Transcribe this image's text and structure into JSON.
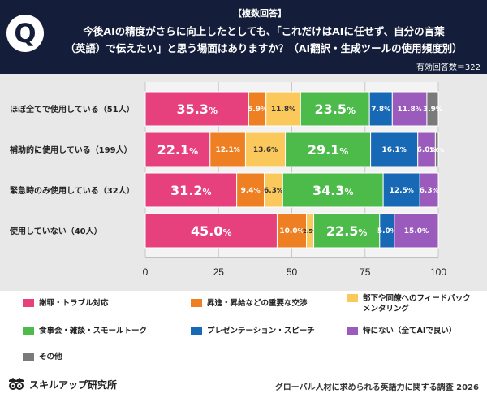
{
  "header": {
    "tag": "【複数回答】",
    "q_mark": "Q",
    "question_line1": "今後AIの精度がさらに向上したとしても、「これだけはAIに任せず、自分の言葉",
    "question_line2": "（英語）で伝えたい」と思う場面はありますか？（AI翻訳・生成ツールの使用頻度別）",
    "respondents": "有効回答数＝322"
  },
  "chart_data": {
    "type": "bar",
    "orientation": "horizontal",
    "stacked": true,
    "categories": [
      "ほぼ全てで使用している（51人）",
      "補助的に使用している（199人）",
      "緊急時のみ使用している（32人）",
      "使用していない（40人）"
    ],
    "series": [
      {
        "name": "謝罪・トラブル対応",
        "color": "#e6417d",
        "values": [
          35.3,
          22.1,
          31.2,
          45.0
        ]
      },
      {
        "name": "昇進・昇給などの重要な交渉",
        "color": "#ee7f22",
        "values": [
          5.9,
          12.1,
          9.4,
          10.0
        ]
      },
      {
        "name": "部下や同僚へのフィードバック メンタリング",
        "color": "#fbc85c",
        "values": [
          11.8,
          13.6,
          6.3,
          2.5
        ]
      },
      {
        "name": "食事会・雑談・スモールトーク",
        "color": "#4cbb4a",
        "values": [
          23.5,
          29.1,
          34.3,
          22.5
        ]
      },
      {
        "name": "プレゼンテーション・スピーチ",
        "color": "#1768b5",
        "values": [
          7.8,
          16.1,
          12.5,
          5.0
        ]
      },
      {
        "name": "特にない（全てAIで良い）",
        "color": "#9a5bbc",
        "values": [
          11.8,
          6.0,
          6.3,
          15.0
        ]
      },
      {
        "name": "その他",
        "color": "#7a7a7a",
        "values": [
          3.9,
          1.0,
          0,
          0
        ]
      }
    ],
    "xlim": [
      0,
      100
    ],
    "xticks": [
      "0",
      "25",
      "50",
      "75",
      "100"
    ],
    "tick_values": [
      0,
      25,
      50,
      75,
      100
    ],
    "value_suffix": "%"
  },
  "legend": {
    "items": [
      {
        "label": "謝罪・トラブル対応",
        "color": "#e6417d"
      },
      {
        "label": "昇進・昇給などの重要な交渉",
        "color": "#ee7f22"
      },
      {
        "label": "部下や同僚へのフィードバック",
        "label2": "メンタリング",
        "color": "#fbc85c"
      },
      {
        "label": "食事会・雑談・スモールトーク",
        "color": "#4cbb4a"
      },
      {
        "label": "プレゼンテーション・スピーチ",
        "color": "#1768b5"
      },
      {
        "label": "特にない（全てAIで良い）",
        "color": "#9a5bbc"
      },
      {
        "label": "その他",
        "color": "#7a7a7a"
      }
    ]
  },
  "footer": {
    "logo_text": "スキルアップ研究所",
    "survey_title": "グローバル人材に求められる英語力に関する調査 2026"
  }
}
